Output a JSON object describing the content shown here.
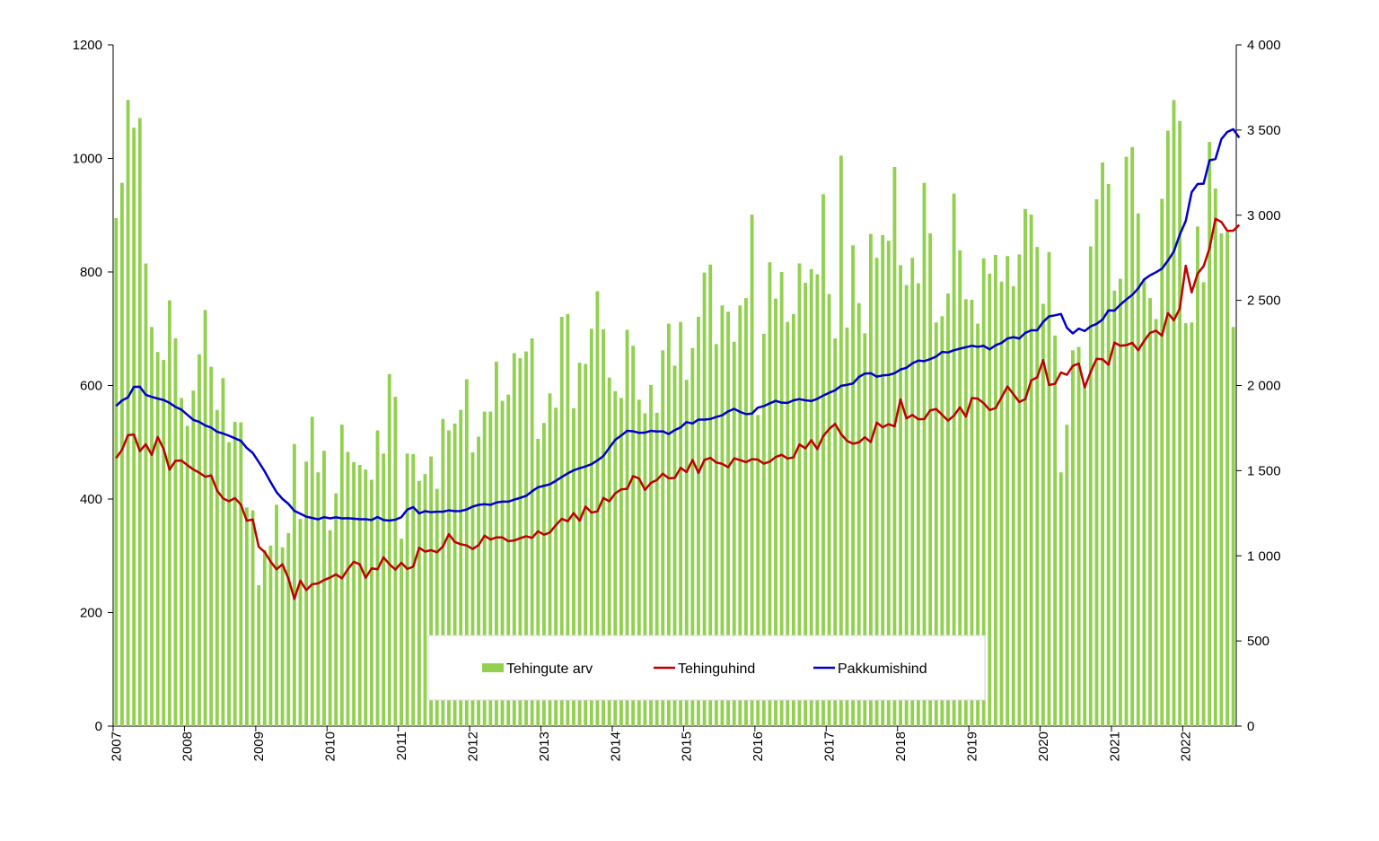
{
  "chart_data": {
    "type": "bar+line",
    "title": "",
    "xlabel": "",
    "ylabel": "",
    "x_ticks": [
      "2007",
      "2008",
      "2009",
      "2010",
      "2011",
      "2012",
      "2013",
      "2014",
      "2015",
      "2016",
      "2017",
      "2018",
      "2019",
      "2020",
      "2021",
      "2022"
    ],
    "y_left": {
      "range": [
        0,
        1200
      ],
      "ticks": [
        "0",
        "200",
        "400",
        "600",
        "800",
        "1000",
        "1200"
      ]
    },
    "y_right": {
      "range": [
        0,
        4000
      ],
      "ticks": [
        "0",
        "500",
        "1 000",
        "1 500",
        "2 000",
        "2 500",
        "3 000",
        "3 500",
        "4 000"
      ]
    },
    "start": "2007-01",
    "legend": {
      "placement": "bottom-center",
      "entries": [
        {
          "label": "Tehingute arv",
          "color": "#92d050",
          "kind": "bar"
        },
        {
          "label": "Tehinguhind",
          "color": "#c00000",
          "kind": "line"
        },
        {
          "label": "Pakkumishind",
          "color": "#0000cc",
          "kind": "line"
        }
      ]
    },
    "series": [
      {
        "name": "Tehingute arv",
        "axis": "left",
        "color": "#92d050",
        "values": [
          895,
          957,
          1103,
          1054,
          1071,
          815,
          703,
          659,
          645,
          750,
          683,
          578,
          529,
          591,
          655,
          733,
          633,
          557,
          613,
          500,
          536,
          535,
          385,
          380,
          248,
          310,
          318,
          390,
          315,
          340,
          497,
          365,
          466,
          545,
          447,
          485,
          345,
          410,
          531,
          483,
          465,
          460,
          452,
          434,
          521,
          480,
          620,
          580,
          330,
          480,
          479,
          432,
          444,
          475,
          418,
          541,
          521,
          533,
          557,
          611,
          482,
          510,
          554,
          554,
          642,
          573,
          584,
          657,
          648,
          660,
          683,
          506,
          534,
          586,
          561,
          721,
          726,
          560,
          640,
          638,
          700,
          766,
          699,
          614,
          590,
          578,
          698,
          670,
          575,
          551,
          601,
          552,
          662,
          709,
          635,
          712,
          610,
          666,
          721,
          799,
          813,
          673,
          741,
          730,
          677,
          741,
          754,
          901,
          548,
          691,
          817,
          753,
          800,
          712,
          726,
          815,
          781,
          805,
          796,
          937,
          761,
          683,
          1005,
          702,
          847,
          745,
          692,
          867,
          825,
          865,
          855,
          985,
          812,
          777,
          825,
          780,
          957,
          868,
          711,
          722,
          762,
          938,
          838,
          752,
          751,
          709,
          824,
          797,
          830,
          783,
          828,
          775,
          831,
          911,
          901,
          844,
          744,
          835,
          688,
          447,
          531,
          662,
          668,
          602,
          845,
          928,
          993,
          955,
          767,
          788,
          1003,
          1020,
          903,
          787,
          754,
          717,
          929,
          1049,
          1103,
          1066,
          710,
          711,
          880,
          782,
          1029,
          947,
          868,
          870,
          703
        ]
      },
      {
        "name": "Tehinguhind",
        "axis": "right",
        "color": "#c00000",
        "values": [
          1573,
          1623,
          1708,
          1712,
          1615,
          1655,
          1593,
          1697,
          1627,
          1506,
          1558,
          1559,
          1532,
          1507,
          1488,
          1464,
          1472,
          1383,
          1337,
          1320,
          1339,
          1300,
          1206,
          1213,
          1053,
          1022,
          966,
          921,
          950,
          867,
          747,
          854,
          799,
          833,
          838,
          858,
          872,
          891,
          868,
          921,
          965,
          950,
          871,
          926,
          921,
          991,
          950,
          919,
          959,
          923,
          936,
          1047,
          1025,
          1033,
          1021,
          1055,
          1127,
          1081,
          1068,
          1061,
          1040,
          1062,
          1118,
          1096,
          1108,
          1108,
          1086,
          1090,
          1103,
          1115,
          1105,
          1144,
          1124,
          1137,
          1180,
          1217,
          1203,
          1251,
          1206,
          1289,
          1254,
          1261,
          1340,
          1320,
          1367,
          1390,
          1393,
          1468,
          1454,
          1387,
          1428,
          1445,
          1482,
          1455,
          1457,
          1516,
          1492,
          1563,
          1487,
          1563,
          1575,
          1548,
          1540,
          1520,
          1572,
          1562,
          1550,
          1567,
          1565,
          1541,
          1553,
          1580,
          1593,
          1571,
          1578,
          1654,
          1631,
          1679,
          1627,
          1703,
          1745,
          1774,
          1715,
          1675,
          1658,
          1666,
          1696,
          1668,
          1782,
          1755,
          1773,
          1760,
          1918,
          1807,
          1827,
          1802,
          1803,
          1854,
          1862,
          1828,
          1794,
          1823,
          1872,
          1817,
          1926,
          1923,
          1896,
          1856,
          1867,
          1930,
          1994,
          1949,
          1903,
          1920,
          2030,
          2048,
          2149,
          2003,
          2010,
          2076,
          2063,
          2115,
          2129,
          1989,
          2080,
          2157,
          2154,
          2122,
          2252,
          2233,
          2237,
          2250,
          2207,
          2262,
          2309,
          2322,
          2293,
          2425,
          2383,
          2452,
          2703,
          2547,
          2657,
          2700,
          2805,
          2979,
          2960,
          2908,
          2909,
          2943
        ]
      },
      {
        "name": "Pakkumishind",
        "axis": "right",
        "color": "#0000cc",
        "values": [
          1880,
          1912,
          1930,
          1992,
          1993,
          1945,
          1933,
          1923,
          1915,
          1898,
          1874,
          1858,
          1828,
          1798,
          1786,
          1765,
          1753,
          1728,
          1718,
          1705,
          1690,
          1675,
          1633,
          1604,
          1551,
          1496,
          1433,
          1374,
          1334,
          1305,
          1264,
          1247,
          1230,
          1222,
          1214,
          1227,
          1220,
          1226,
          1220,
          1221,
          1218,
          1215,
          1215,
          1210,
          1228,
          1210,
          1207,
          1212,
          1227,
          1271,
          1286,
          1249,
          1262,
          1256,
          1259,
          1259,
          1267,
          1262,
          1263,
          1272,
          1289,
          1299,
          1303,
          1299,
          1313,
          1318,
          1318,
          1330,
          1340,
          1352,
          1379,
          1402,
          1411,
          1420,
          1440,
          1463,
          1484,
          1502,
          1514,
          1525,
          1538,
          1560,
          1586,
          1634,
          1681,
          1706,
          1734,
          1731,
          1722,
          1723,
          1734,
          1730,
          1731,
          1715,
          1738,
          1754,
          1785,
          1777,
          1800,
          1800,
          1803,
          1815,
          1825,
          1848,
          1863,
          1845,
          1832,
          1835,
          1870,
          1879,
          1895,
          1910,
          1899,
          1898,
          1913,
          1920,
          1913,
          1909,
          1922,
          1941,
          1957,
          1972,
          1998,
          2004,
          2012,
          2050,
          2070,
          2072,
          2052,
          2059,
          2062,
          2072,
          2094,
          2104,
          2130,
          2146,
          2143,
          2155,
          2170,
          2197,
          2194,
          2207,
          2216,
          2225,
          2233,
          2227,
          2233,
          2212,
          2236,
          2250,
          2276,
          2284,
          2276,
          2309,
          2324,
          2324,
          2373,
          2406,
          2412,
          2420,
          2339,
          2306,
          2334,
          2320,
          2347,
          2362,
          2387,
          2441,
          2440,
          2475,
          2505,
          2532,
          2570,
          2623,
          2647,
          2665,
          2686,
          2733,
          2787,
          2886,
          2966,
          3135,
          3183,
          3185,
          3322,
          3330,
          3447,
          3489,
          3505,
          3455
        ]
      }
    ]
  }
}
